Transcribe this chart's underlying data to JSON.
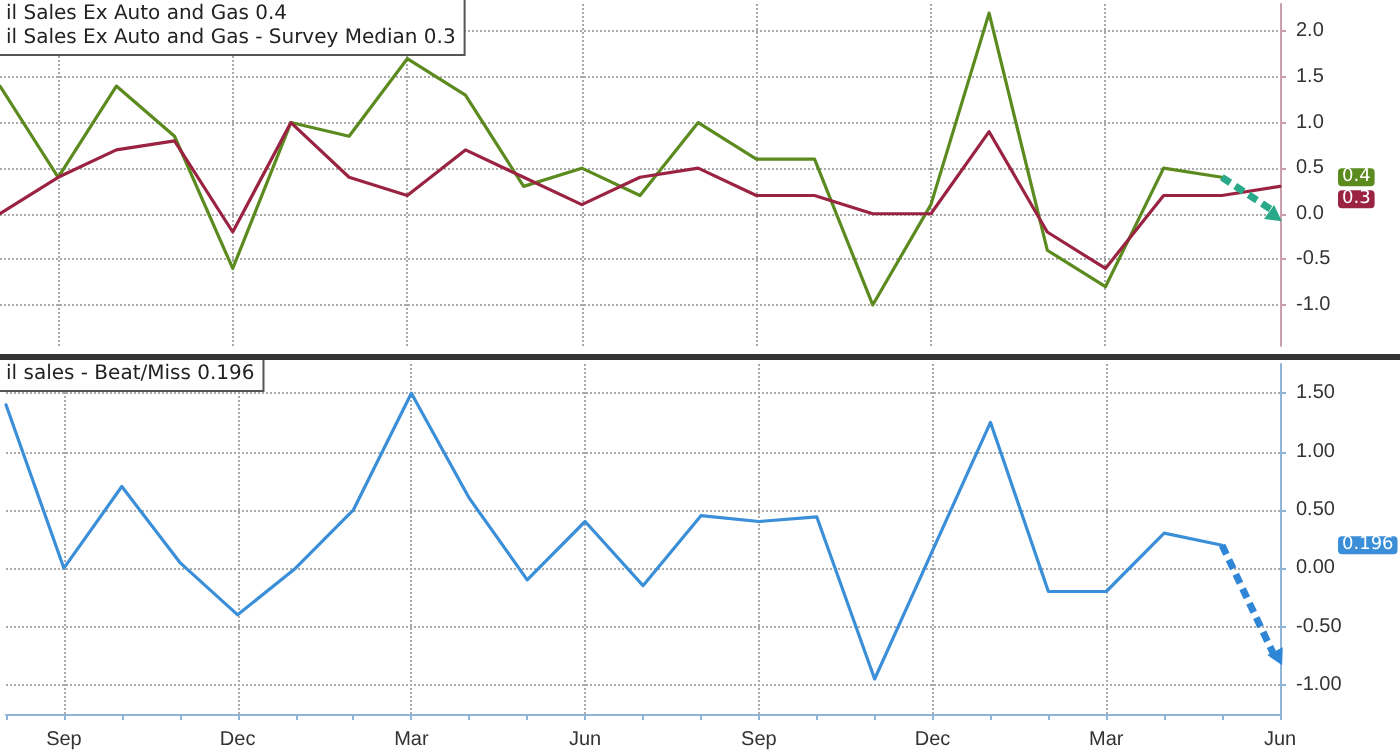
{
  "chart_data": [
    {
      "type": "line",
      "categories": [
        null,
        null,
        null,
        null,
        null,
        null,
        null,
        null,
        null,
        null,
        null,
        null,
        null,
        null,
        null,
        null,
        null,
        null,
        null,
        null,
        null,
        null,
        null
      ],
      "series": [
        {
          "color": "#5b8a1e",
          "values": [
            1.4,
            0.4,
            1.4,
            0.85,
            -0.6,
            1.0,
            0.85,
            1.7,
            1.3,
            0.3,
            0.5,
            0.2,
            1.0,
            0.6,
            0.6,
            -1.0,
            0.1,
            2.2,
            -0.4,
            -0.8,
            0.5,
            0.4,
            null
          ]
        },
        {
          "color": "#9b2342",
          "values": [
            0.0,
            0.4,
            0.7,
            0.8,
            -0.2,
            1.0,
            0.4,
            0.2,
            0.7,
            0.4,
            0.1,
            0.4,
            0.5,
            0.2,
            0.2,
            0.0,
            0.0,
            0.9,
            -0.2,
            -0.6,
            0.2,
            0.2,
            0.3
          ]
        }
      ],
      "annotations": [
        "il Sales Ex Auto and Gas 0.4",
        "il Sales Ex Auto and Gas - Survey Median 0.3",
        "0.4",
        "0.3"
      ],
      "ylim": [
        -1.45,
        2.3
      ],
      "yticks": [
        {
          "value": -1,
          "label": "-1.0"
        },
        {
          "value": -0.5,
          "label": "-0.5"
        },
        {
          "value": 0,
          "label": "0.0"
        },
        {
          "value": 0.5,
          "label": "0.5"
        },
        {
          "value": 1,
          "label": "1.0"
        },
        {
          "value": 1.5,
          "label": "1.5"
        },
        {
          "value": 2,
          "label": "2.0"
        }
      ],
      "grid": true,
      "tick_labels": "y",
      "marker": "none",
      "line_style": "solid"
    },
    {
      "type": "line",
      "categories": [
        null,
        "Sep",
        null,
        null,
        "Dec",
        null,
        null,
        "Mar",
        null,
        null,
        "Jun",
        null,
        null,
        "Sep",
        null,
        null,
        "Dec",
        null,
        null,
        "Mar",
        null,
        null,
        "Jun"
      ],
      "series": [
        {
          "color": "#3a8fd8",
          "values": [
            1.4,
            0.0,
            0.7,
            0.05,
            -0.4,
            0.0,
            0.5,
            1.5,
            0.6,
            -0.1,
            0.4,
            -0.15,
            0.45,
            0.4,
            0.44,
            -0.95,
            0.15,
            1.25,
            -0.2,
            -0.2,
            0.3,
            0.196,
            null
          ]
        }
      ],
      "annotations": [
        "il sales - Beat/Miss 0.196",
        "0.196"
      ],
      "ylim": [
        -1.25,
        1.75
      ],
      "yticks": [
        {
          "value": -1,
          "label": "-1.00"
        },
        {
          "value": -0.5,
          "label": "-0.50"
        },
        {
          "value": 0,
          "label": "0.00"
        },
        {
          "value": 0.5,
          "label": "0.50"
        },
        {
          "value": 1,
          "label": "1.00"
        },
        {
          "value": 1.5,
          "label": "1.50"
        }
      ],
      "grid": true,
      "marker": "none",
      "line_style": "solid"
    }
  ]
}
